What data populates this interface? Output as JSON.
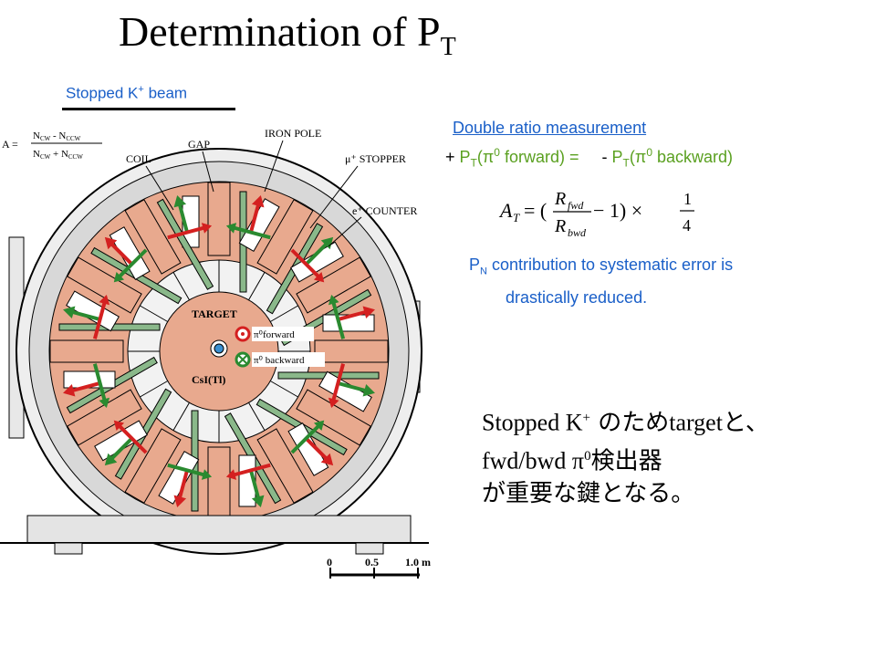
{
  "title": {
    "main": "Determination of P",
    "sub": "T"
  },
  "beam_label": {
    "pre": "Stopped K",
    "sup": "+",
    "post": " beam"
  },
  "double_ratio": {
    "title": "Double ratio measurement",
    "eq_plus": "+",
    "eq_left": " P",
    "eq_sub1": "T",
    "eq_mid1": "(π",
    "eq_sup1": "0",
    "eq_mid2": " forward)  =",
    "eq_minus": "-",
    "eq_right": " P",
    "eq_sub2": "T",
    "eq_mid3": "(π",
    "eq_sup2": "0",
    "eq_end": " backward)"
  },
  "formula": {
    "lhs": "A",
    "lhs_sub": "T",
    "eq": " = (",
    "num": "R",
    "num_sub": "fwd",
    "den": "R",
    "den_sub": "bwd",
    "tail": " − 1) ×",
    "frac_num": "1",
    "frac_den": "4"
  },
  "pn_note": {
    "p": "P",
    "sub": "N",
    "line1": " contribution to systematic error is",
    "line2": "drastically reduced."
  },
  "japanese": {
    "l1a": "Stopped K",
    "l1sup": "+",
    "l1b": " のため",
    "l1c": "target",
    "l1d": "と、",
    "l2a": "fwd/bwd π",
    "l2sup": "0",
    "l2b": "検出器",
    "l3": "が重要な鍵となる。"
  },
  "diagram": {
    "asym_formula": {
      "a": "A =",
      "num": "N",
      "num_s1": "CW",
      "num_m": " - N",
      "num_s2": "CCW",
      "den": "N",
      "den_s1": "CW",
      "den_m": " + N",
      "den_s2": "CCW"
    },
    "labels": {
      "coil": "COIL",
      "gap": "GAP",
      "iron_pole": "IRON POLE",
      "mu_stopper": "μ⁺ STOPPER",
      "e_counter": "e⁺ COUNTER",
      "target": "TARGET",
      "csi": "CsI(Tl)",
      "fwd": "π⁰forward",
      "bwd": "π⁰ backward"
    },
    "scale": {
      "s0": "0",
      "s1": "0.5",
      "s2": "1.0 m"
    },
    "colors": {
      "copper": "#e8a98e",
      "gray": "#d0d0d0",
      "green": "#2a8a30",
      "red": "#d42020",
      "blue": "#3a8fd0"
    }
  }
}
